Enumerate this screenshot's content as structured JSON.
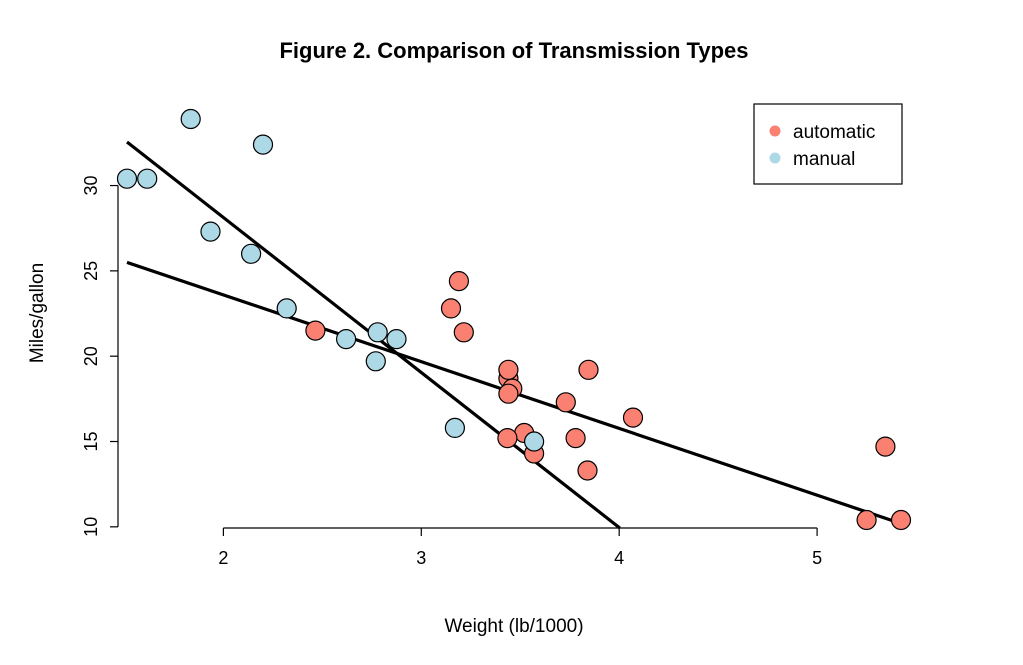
{
  "chart_data": {
    "type": "scatter",
    "title": "Figure 2. Comparison of Transmission Types",
    "xlabel": "Weight (lb/1000)",
    "ylabel": "Miles/gallon",
    "xlim": [
      1.513,
      5.424
    ],
    "ylim": [
      10.4,
      33.9
    ],
    "x_ticks": [
      2,
      3,
      4,
      5
    ],
    "y_ticks": [
      10,
      15,
      20,
      25,
      30
    ],
    "grid": false,
    "legend_position": "top-right",
    "series": [
      {
        "name": "automatic",
        "color": "#FA8072",
        "points": [
          {
            "x": 3.215,
            "y": 21.4
          },
          {
            "x": 3.44,
            "y": 18.7
          },
          {
            "x": 3.46,
            "y": 18.1
          },
          {
            "x": 3.57,
            "y": 14.3
          },
          {
            "x": 3.19,
            "y": 24.4
          },
          {
            "x": 3.15,
            "y": 22.8
          },
          {
            "x": 3.44,
            "y": 19.2
          },
          {
            "x": 3.44,
            "y": 17.8
          },
          {
            "x": 4.07,
            "y": 16.4
          },
          {
            "x": 3.73,
            "y": 17.3
          },
          {
            "x": 3.78,
            "y": 15.2
          },
          {
            "x": 5.25,
            "y": 10.4
          },
          {
            "x": 5.424,
            "y": 10.4
          },
          {
            "x": 5.345,
            "y": 14.7
          },
          {
            "x": 2.465,
            "y": 21.5
          },
          {
            "x": 3.52,
            "y": 15.5
          },
          {
            "x": 3.435,
            "y": 15.2
          },
          {
            "x": 3.84,
            "y": 13.3
          },
          {
            "x": 3.845,
            "y": 19.2
          }
        ]
      },
      {
        "name": "manual",
        "color": "#ADD8E6",
        "points": [
          {
            "x": 2.62,
            "y": 21.0
          },
          {
            "x": 2.875,
            "y": 21.0
          },
          {
            "x": 2.32,
            "y": 22.8
          },
          {
            "x": 2.2,
            "y": 32.4
          },
          {
            "x": 1.615,
            "y": 30.4
          },
          {
            "x": 1.835,
            "y": 33.9
          },
          {
            "x": 1.935,
            "y": 27.3
          },
          {
            "x": 2.14,
            "y": 26.0
          },
          {
            "x": 1.513,
            "y": 30.4
          },
          {
            "x": 3.17,
            "y": 15.8
          },
          {
            "x": 2.77,
            "y": 19.7
          },
          {
            "x": 2.78,
            "y": 21.4
          },
          {
            "x": 3.57,
            "y": 15.0
          }
        ]
      }
    ],
    "fit_lines": [
      {
        "intercept": 31.4161,
        "slope": -3.9128,
        "color": "#000000"
      },
      {
        "intercept": 46.2945,
        "slope": -9.0843,
        "color": "#000000"
      }
    ]
  }
}
